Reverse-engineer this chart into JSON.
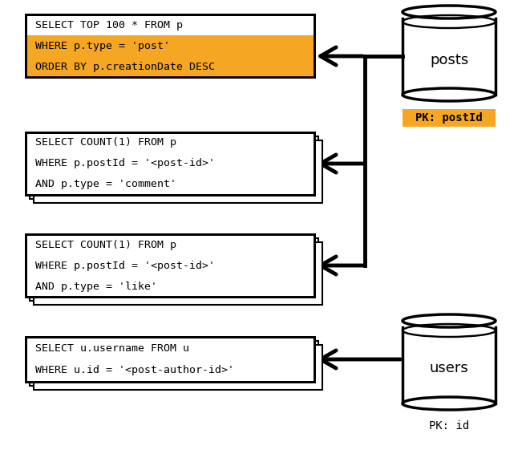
{
  "bg_color": "#ffffff",
  "boxes": [
    {
      "id": "box1",
      "lines": [
        "SELECT TOP 100 * FROM p",
        "WHERE p.type = 'post'",
        "ORDER BY p.creationDate DESC"
      ],
      "highlight_lines": [
        1,
        2
      ],
      "highlight_color": "#F5A623",
      "stack": 1
    },
    {
      "id": "box2",
      "lines": [
        "SELECT COUNT(1) FROM p",
        "WHERE p.postId = '<post-id>'",
        "AND p.type = 'comment'"
      ],
      "highlight_lines": [],
      "highlight_color": null,
      "stack": 3
    },
    {
      "id": "box3",
      "lines": [
        "SELECT COUNT(1) FROM p",
        "WHERE p.postId = '<post-id>'",
        "AND p.type = 'like'"
      ],
      "highlight_lines": [],
      "highlight_color": null,
      "stack": 3
    },
    {
      "id": "box4",
      "lines": [
        "SELECT u.username FROM u",
        "WHERE u.id = '<post-author-id>'"
      ],
      "highlight_lines": [],
      "highlight_color": null,
      "stack": 3
    }
  ],
  "db_posts": {
    "label": "posts",
    "pk_label": "PK: postId",
    "pk_color": "#F5A623"
  },
  "db_users": {
    "label": "users",
    "pk_label": "PK: id",
    "pk_color": null
  },
  "font_size": 9.5,
  "font_family": "monospace"
}
